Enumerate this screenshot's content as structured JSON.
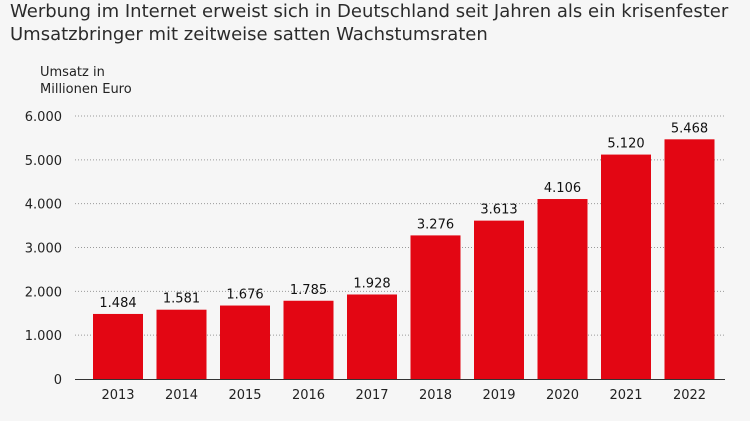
{
  "title": "Werbung im Internet erweist sich in Deutschland seit Jahren als ein krisenfester Umsatzbringer mit zeitweise satten Wachstumsraten",
  "colors": {
    "background": "#f6f6f6",
    "bar": "#e30613",
    "grid": "#9a9a9a",
    "text": "#222222"
  },
  "chart_data": {
    "type": "bar",
    "title": "Werbung im Internet erweist sich in Deutschland seit Jahren als ein krisenfester Umsatzbringer mit zeitweise satten Wachstumsraten",
    "xlabel": "",
    "ylabel": "Umsatz in Millionen Euro",
    "ylim": [
      0,
      6000
    ],
    "yticks": [
      0,
      1000,
      2000,
      3000,
      4000,
      5000,
      6000
    ],
    "ytick_labels": [
      "0",
      "1.000",
      "2.000",
      "3.000",
      "4.000",
      "5.000",
      "6.000"
    ],
    "grid": "horizontal dotted",
    "legend": "none",
    "categories": [
      "2013",
      "2014",
      "2015",
      "2016",
      "2017",
      "2018",
      "2019",
      "2020",
      "2021",
      "2022"
    ],
    "values": [
      1484,
      1581,
      1676,
      1785,
      1928,
      3276,
      3613,
      4106,
      5120,
      5468
    ],
    "value_labels": [
      "1.484",
      "1.581",
      "1.676",
      "1.785",
      "1.928",
      "3.276",
      "3.613",
      "4.106",
      "5.120",
      "5.468"
    ]
  }
}
